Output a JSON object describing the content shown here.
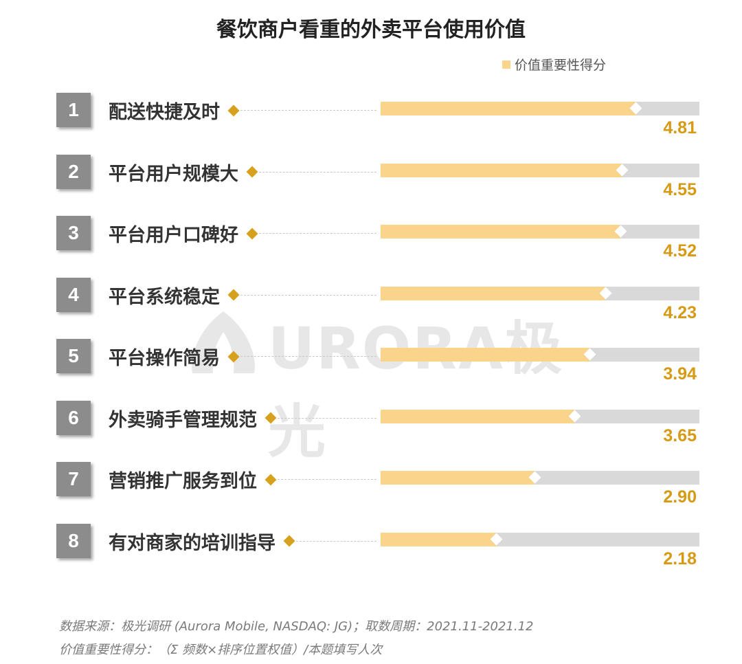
{
  "chart_data": {
    "type": "bar",
    "title": "餐饮商户看重的外卖平台使用价值",
    "legend": {
      "label": "价值重要性得分",
      "color": "#FAD48A",
      "position": "top-right"
    },
    "xlim": [
      0,
      6
    ],
    "categories": [
      "配送快捷及时",
      "平台用户规模大",
      "平台用户口碑好",
      "平台系统稳定",
      "平台操作简易",
      "外卖骑手管理规范",
      "营销推广服务到位",
      "有对商家的培训指导"
    ],
    "ranks": [
      "1",
      "2",
      "3",
      "4",
      "5",
      "6",
      "7",
      "8"
    ],
    "values": [
      4.81,
      4.55,
      4.52,
      4.23,
      3.94,
      3.65,
      2.9,
      2.18
    ],
    "value_labels": [
      "4.81",
      "4.55",
      "4.52",
      "4.23",
      "3.94",
      "3.65",
      "2.90",
      "2.18"
    ],
    "bar_color": "#FAD48A",
    "track_color": "#D9D9D9",
    "value_color": "#D69A14"
  },
  "watermark": {
    "text": "URORA极光",
    "icon": "aurora-logo-icon"
  },
  "footnotes": {
    "source": "数据来源：极光调研 (Aurora Mobile, NASDAQ: JG)；取数周期：2021.11-2021.12",
    "definition": "价值重要性得分：（Σ 频数×排序位置权值）/本题填写人次"
  }
}
